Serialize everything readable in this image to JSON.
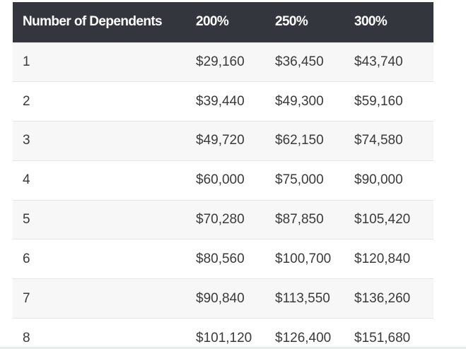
{
  "table": {
    "headers": [
      "Number of Dependents",
      "200%",
      "250%",
      "300%"
    ],
    "rows": [
      [
        "1",
        "$29,160",
        "$36,450",
        "$43,740"
      ],
      [
        "2",
        "$39,440",
        "$49,300",
        "$59,160"
      ],
      [
        "3",
        "$49,720",
        "$62,150",
        "$74,580"
      ],
      [
        "4",
        "$60,000",
        "$75,000",
        "$90,000"
      ],
      [
        "5",
        "$70,280",
        "$87,850",
        "$105,420"
      ],
      [
        "6",
        "$80,560",
        "$100,700",
        "$120,840"
      ],
      [
        "7",
        "$90,840",
        "$113,550",
        "$136,260"
      ],
      [
        "8",
        "$101,120",
        "$126,400",
        "$151,680"
      ]
    ]
  },
  "colors": {
    "header_bg": "#33363d",
    "header_text": "#ffffff",
    "row_alt_bg": "#f7f7f7",
    "cell_text": "#3a3a3a"
  }
}
